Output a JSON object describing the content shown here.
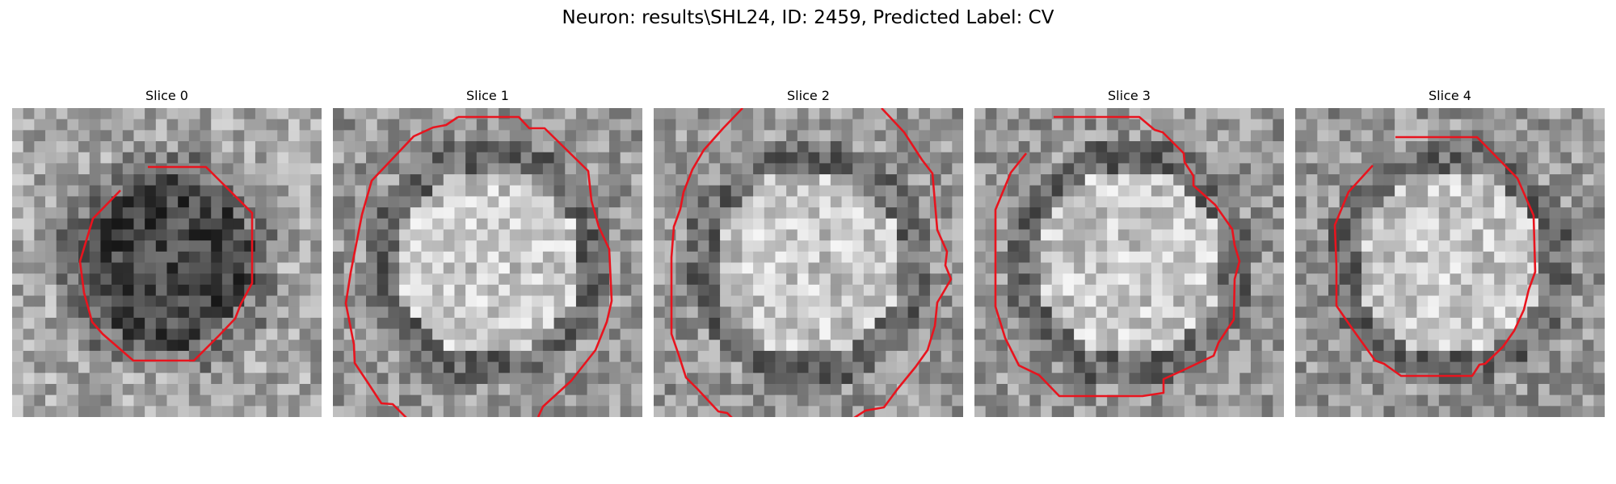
{
  "figure": {
    "title": "Neuron: results\\SHL24, ID: 2459, Predicted Label: CV"
  },
  "slices": [
    {
      "title": "Slice 0",
      "center_tone": "dark"
    },
    {
      "title": "Slice 1",
      "center_tone": "light"
    },
    {
      "title": "Slice 2",
      "center_tone": "light"
    },
    {
      "title": "Slice 3",
      "center_tone": "light"
    },
    {
      "title": "Slice 4",
      "center_tone": "light"
    }
  ],
  "colors": {
    "contour": "#e8141e",
    "colormap": "gray"
  }
}
